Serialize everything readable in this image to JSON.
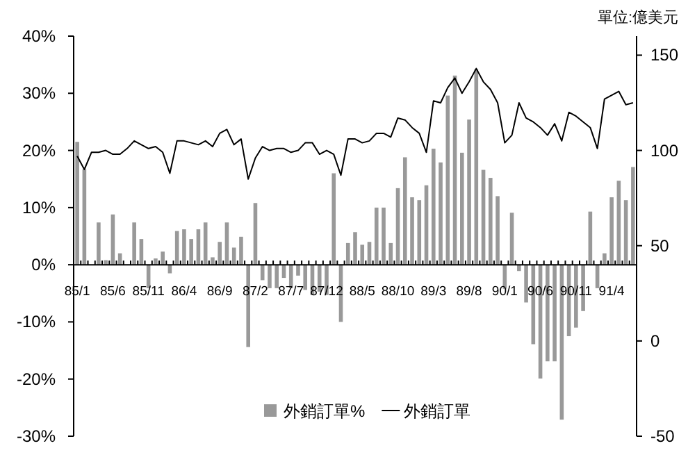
{
  "chart_data": {
    "type": "bar",
    "categories": [
      "85/1",
      null,
      null,
      null,
      null,
      "85/6",
      null,
      null,
      null,
      null,
      "85/11",
      null,
      null,
      null,
      null,
      "86/4",
      null,
      null,
      null,
      null,
      "86/9",
      null,
      null,
      null,
      null,
      "87/2",
      null,
      null,
      null,
      null,
      "87/7",
      null,
      null,
      null,
      null,
      "87/12",
      null,
      null,
      null,
      null,
      "88/5",
      null,
      null,
      null,
      null,
      "88/10",
      null,
      null,
      null,
      null,
      "89/3",
      null,
      null,
      null,
      null,
      "89/8",
      null,
      null,
      null,
      null,
      "90/1",
      null,
      null,
      null,
      null,
      "90/6",
      null,
      null,
      null,
      null,
      "90/11",
      null,
      null,
      null,
      null,
      "91/4",
      null,
      null,
      null
    ],
    "series": [
      {
        "name": "外銷訂單%",
        "color": "#999999",
        "values": [
          21.5,
          16.7,
          0,
          7.4,
          0.8,
          8.8,
          2.0,
          0,
          7.4,
          4.5,
          -4.1,
          1.1,
          2.3,
          -1.5,
          5.9,
          6.2,
          4.5,
          6.2,
          7.4,
          1.3,
          4.0,
          7.4,
          3.0,
          4.9,
          -14.4,
          10.8,
          -2.7,
          -4.1,
          -4.1,
          -2.3,
          -4.1,
          -1.9,
          -4.4,
          -5.3,
          -4.7,
          -5.3,
          16.0,
          -10.0,
          3.8,
          5.7,
          3.5,
          4.0,
          10.0,
          10.0,
          3.8,
          13.4,
          18.8,
          11.8,
          11.3,
          13.9,
          20.3,
          17.9,
          29.6,
          33.1,
          19.6,
          25.4,
          34.2,
          16.6,
          15.2,
          12.0,
          -4.2,
          9.1,
          -1.1,
          -6.6,
          -13.9,
          -19.9,
          -16.9,
          -16.9,
          -27.1,
          -12.5,
          -11.0,
          -8.1,
          9.3,
          -4.1,
          2.0,
          11.8,
          14.7,
          11.3,
          17.1
        ]
      },
      {
        "name": "外銷訂單",
        "type": "line",
        "axis": "y2",
        "color": "#000000",
        "values": [
          97,
          90,
          99,
          99,
          100,
          98,
          98,
          101,
          105,
          103,
          101,
          102,
          99,
          88,
          105,
          105,
          104,
          103,
          105,
          102,
          109,
          111,
          103,
          106,
          85,
          96,
          102,
          100,
          101,
          101,
          99,
          100,
          104,
          104,
          98,
          100,
          98,
          87,
          106,
          106,
          104,
          105,
          109,
          109,
          107,
          117,
          116,
          112,
          109,
          99,
          126,
          125,
          133,
          138,
          130,
          136,
          143,
          136,
          132,
          125,
          104,
          108,
          125,
          117,
          115,
          112,
          108,
          114,
          105,
          120,
          118,
          115,
          112,
          101,
          127,
          129,
          131,
          124,
          125
        ]
      }
    ],
    "ylim": [
      -30,
      40
    ],
    "yticks": [
      {
        "value": 40,
        "label": "40%"
      },
      {
        "value": 30,
        "label": "30%"
      },
      {
        "value": 20,
        "label": "20%"
      },
      {
        "value": 10,
        "label": "10%"
      },
      {
        "value": 0,
        "label": "0%"
      },
      {
        "value": -10,
        "label": "-10%"
      },
      {
        "value": -20,
        "label": "-20%"
      },
      {
        "value": -30,
        "label": "-30%"
      }
    ],
    "y2lim": [
      -50,
      160
    ],
    "y2ticks": [
      -50,
      0,
      50,
      100,
      150
    ],
    "legend": "bottom",
    "grid": false,
    "annotations": [
      "單位:億美元"
    ]
  }
}
